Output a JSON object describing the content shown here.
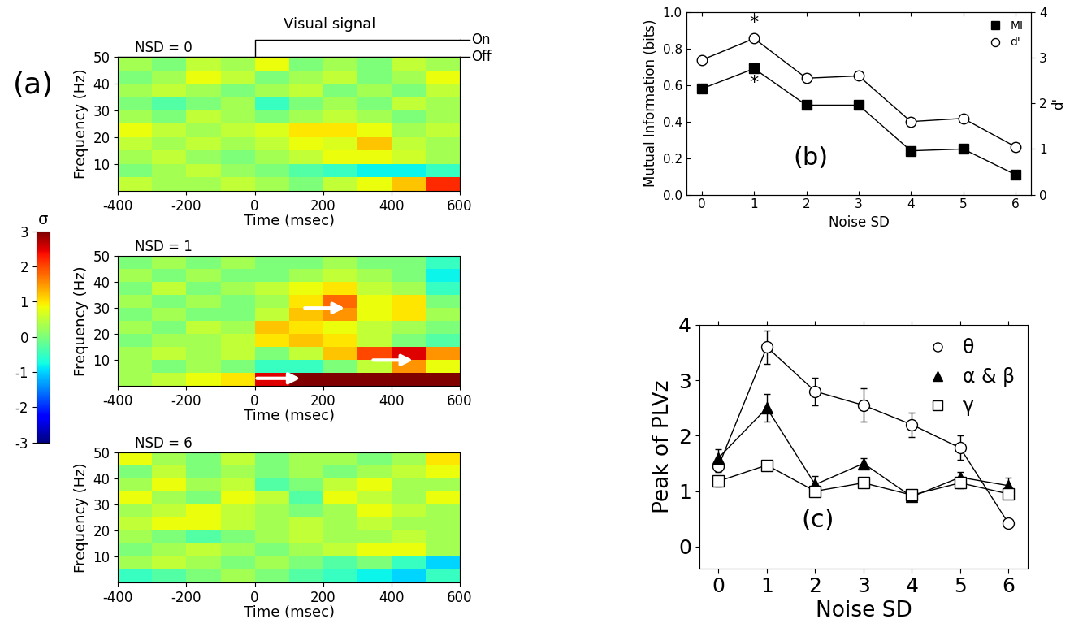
{
  "panel_labels": {
    "a": "(a)",
    "b": "(b)",
    "c": "(c)"
  },
  "colorbar": {
    "label": "σ",
    "range": [
      -3,
      3
    ],
    "ticks": [
      -3,
      -2,
      -1,
      0,
      1,
      2,
      3
    ]
  },
  "chart_data": [
    {
      "type": "heatmap",
      "title": "NSD = 0",
      "x_label": "Time (msec)",
      "y_label": "Frequency (Hz)",
      "xlim": [
        -400,
        600
      ],
      "ylim": [
        0,
        50
      ],
      "xticks": [
        -400,
        -200,
        0,
        200,
        400,
        600
      ],
      "yticks": [
        10,
        20,
        30,
        40,
        50
      ],
      "signal": {
        "label": "Visual signal",
        "on": "On",
        "off": "Off",
        "onset": 0
      },
      "x_edges": [
        -400,
        -300,
        -200,
        -100,
        0,
        100,
        200,
        300,
        400,
        500,
        600
      ],
      "y_edges": [
        0,
        5,
        10,
        15,
        20,
        25,
        30,
        35,
        40,
        45,
        50
      ],
      "cells": [
        [
          0.5,
          0.3,
          0.3,
          0.5,
          0.3,
          0,
          0.5,
          0.8,
          1.2,
          2.2
        ],
        [
          0,
          0.3,
          0.5,
          0.2,
          0,
          -0.3,
          -0.5,
          -0.8,
          -0.8,
          -0.5
        ],
        [
          0.3,
          0.5,
          0.2,
          0,
          0.3,
          0.5,
          0.8,
          0.8,
          0.6,
          0.3
        ],
        [
          0.5,
          0.3,
          0.5,
          0.3,
          0.5,
          0.8,
          0.7,
          1.2,
          0.5,
          0.3
        ],
        [
          0.8,
          0.5,
          0.3,
          0.5,
          0.7,
          1.0,
          1.0,
          0.8,
          0.3,
          0.5
        ],
        [
          0.3,
          0,
          0.5,
          0.3,
          0,
          0.3,
          0.5,
          0.3,
          0,
          0.3
        ],
        [
          0,
          -0.3,
          0,
          0.3,
          -0.5,
          0,
          0.3,
          0,
          0.5,
          0.3
        ],
        [
          0.3,
          0.5,
          0.3,
          0,
          0.3,
          0.5,
          0,
          0.3,
          0,
          0.5
        ],
        [
          0,
          0.3,
          0.8,
          0.5,
          0,
          0.3,
          0.5,
          0,
          0.3,
          0.8
        ],
        [
          0.3,
          0,
          0.5,
          0.3,
          0.8,
          0,
          0.3,
          0,
          0.5,
          0.3
        ]
      ]
    },
    {
      "type": "heatmap",
      "title": "NSD = 1",
      "x_label": "Time (msec)",
      "y_label": "Frequency (Hz)",
      "xlim": [
        -400,
        600
      ],
      "ylim": [
        0,
        50
      ],
      "xticks": [
        -400,
        -200,
        0,
        200,
        400,
        600
      ],
      "yticks": [
        10,
        20,
        30,
        40,
        50
      ],
      "x_edges": [
        -400,
        -300,
        -200,
        -100,
        0,
        100,
        200,
        300,
        400,
        500,
        600
      ],
      "y_edges": [
        0,
        5,
        10,
        15,
        20,
        25,
        30,
        35,
        40,
        45,
        50
      ],
      "cells": [
        [
          0.3,
          0.5,
          0.8,
          1.0,
          2.5,
          3.0,
          3.0,
          3.0,
          3.0,
          3.0
        ],
        [
          0.3,
          0,
          0.3,
          0,
          -0.5,
          -0.5,
          0,
          0.5,
          1.5,
          0.8
        ],
        [
          0.3,
          0.5,
          0.3,
          0.5,
          0,
          0.5,
          1.2,
          2.0,
          2.5,
          1.5
        ],
        [
          0,
          0.3,
          0.3,
          0.5,
          1.0,
          1.2,
          1.0,
          0.5,
          0,
          -0.3
        ],
        [
          0.3,
          0,
          0.5,
          0.3,
          1.2,
          1.0,
          0.8,
          0.5,
          0.3,
          0
        ],
        [
          0,
          0.3,
          0,
          0,
          0.5,
          1.2,
          1.5,
          0.8,
          1.0,
          0.3
        ],
        [
          0.3,
          0,
          0.3,
          0,
          0.3,
          1.0,
          1.8,
          0.8,
          1.0,
          0
        ],
        [
          0,
          0.5,
          0,
          0.3,
          0.5,
          0.8,
          1.0,
          0.5,
          0.3,
          -0.5
        ],
        [
          0.3,
          0,
          0.3,
          0,
          0,
          0.3,
          0.5,
          0.3,
          0,
          -0.8
        ],
        [
          0,
          0.3,
          0,
          0.3,
          0,
          0,
          0.3,
          0,
          0,
          -0.5
        ]
      ]
    },
    {
      "type": "heatmap",
      "title": "NSD = 6",
      "x_label": "Time (msec)",
      "y_label": "Frequency (Hz)",
      "xlim": [
        -400,
        600
      ],
      "ylim": [
        0,
        50
      ],
      "xticks": [
        -400,
        -200,
        0,
        200,
        400,
        600
      ],
      "yticks": [
        10,
        20,
        30,
        40,
        50
      ],
      "x_edges": [
        -400,
        -300,
        -200,
        -100,
        0,
        100,
        200,
        300,
        400,
        500,
        600
      ],
      "y_edges": [
        0,
        5,
        10,
        15,
        20,
        25,
        30,
        35,
        40,
        45,
        50
      ],
      "cells": [
        [
          -0.5,
          -0.3,
          0,
          0.3,
          0,
          -0.3,
          -0.5,
          -0.8,
          -1.0,
          -0.5
        ],
        [
          0.3,
          0.5,
          0.3,
          0,
          0.3,
          0,
          -0.3,
          0,
          -0.5,
          -1.0
        ],
        [
          0,
          0.3,
          0.5,
          0.3,
          0,
          0.3,
          0.5,
          0.8,
          0.8,
          0.3
        ],
        [
          0.3,
          0,
          -0.3,
          0,
          0.3,
          0.5,
          0.3,
          0.3,
          0.5,
          0.3
        ],
        [
          0.5,
          0.8,
          0.8,
          0.5,
          0.3,
          0.5,
          0.3,
          0.5,
          0.3,
          0.3
        ],
        [
          0.3,
          0.5,
          0.8,
          0.5,
          0.3,
          0,
          0.3,
          0.8,
          0.5,
          0.3
        ],
        [
          0.8,
          0.3,
          0,
          0.8,
          0.5,
          -0.3,
          0.8,
          0.5,
          0.3,
          0.8
        ],
        [
          0.3,
          0.8,
          0.3,
          0.5,
          -0.3,
          0,
          0.5,
          0.8,
          0.3,
          0.3
        ],
        [
          0,
          0.5,
          0,
          0.3,
          0,
          0.3,
          0,
          0.3,
          0.5,
          0.8
        ],
        [
          0.8,
          0.3,
          0,
          0.5,
          0,
          0.3,
          0.3,
          0,
          0.3,
          1.0
        ]
      ]
    },
    {
      "type": "line",
      "x_label": "Noise SD",
      "y_label": "Mutual Information (bits)",
      "y2_label": "d'",
      "x": [
        0,
        1,
        2,
        3,
        4,
        5,
        6
      ],
      "xlim": [
        -0.3,
        6.3
      ],
      "xticks": [
        0,
        1,
        2,
        3,
        4,
        5,
        6
      ],
      "ylim": [
        0,
        1
      ],
      "yticks": [
        {
          "value": 0,
          "label": "0.0"
        },
        {
          "value": 0.2,
          "label": "0.2"
        },
        {
          "value": 0.4,
          "label": "0.4"
        },
        {
          "value": 0.6,
          "label": "0.6"
        },
        {
          "value": 0.8,
          "label": "0.8"
        },
        {
          "value": 1,
          "label": "1.0"
        }
      ],
      "y2lim": [
        0,
        4
      ],
      "y2ticks": [
        0,
        1,
        2,
        3,
        4
      ],
      "legend": "upper right",
      "series": [
        {
          "name": "MI",
          "color": "#000000",
          "marker": "square",
          "values": [
            0.58,
            0.69,
            0.49,
            0.49,
            0.24,
            0.25,
            0.11
          ]
        },
        {
          "name": "d'",
          "color": "#000000",
          "marker": "circle_open",
          "axis": "y2",
          "values": [
            2.95,
            3.42,
            2.55,
            2.6,
            1.6,
            1.67,
            1.05
          ]
        }
      ],
      "annotations": [
        {
          "text": "*",
          "x": 1,
          "y": 0.69,
          "axis": "y"
        },
        {
          "text": "*",
          "x": 1,
          "y": 3.42,
          "axis": "y2"
        }
      ]
    },
    {
      "type": "line",
      "x_label": "Noise SD",
      "y_label": "Peak of PLVz",
      "x": [
        0,
        1,
        2,
        3,
        4,
        5,
        6
      ],
      "xlim": [
        -0.4,
        6.4
      ],
      "xticks": [
        0,
        1,
        2,
        3,
        4,
        5,
        6
      ],
      "ylim": [
        -0.4,
        4
      ],
      "yticks": [
        0,
        1,
        2,
        3,
        4
      ],
      "legend": "upper right",
      "series": [
        {
          "name": "θ",
          "color": "#000000",
          "marker": "circle_open",
          "values": [
            1.45,
            3.6,
            2.8,
            2.55,
            2.2,
            1.78,
            0.42
          ],
          "errors": [
            0.1,
            0.3,
            0.25,
            0.3,
            0.22,
            0.22,
            0.05
          ]
        },
        {
          "name": "α & β",
          "color": "#000000",
          "marker": "triangle",
          "values": [
            1.6,
            2.5,
            1.12,
            1.5,
            0.9,
            1.25,
            1.1
          ],
          "errors": [
            0.15,
            0.25,
            0.15,
            0.1,
            0.08,
            0.1,
            0.15
          ]
        },
        {
          "name": "γ",
          "color": "#000000",
          "marker": "square_open",
          "values": [
            1.18,
            1.47,
            1.0,
            1.15,
            0.93,
            1.15,
            0.95
          ],
          "errors": [
            0.1,
            0.08,
            0.08,
            0.05,
            0.05,
            0.1,
            0.08
          ]
        }
      ]
    }
  ]
}
